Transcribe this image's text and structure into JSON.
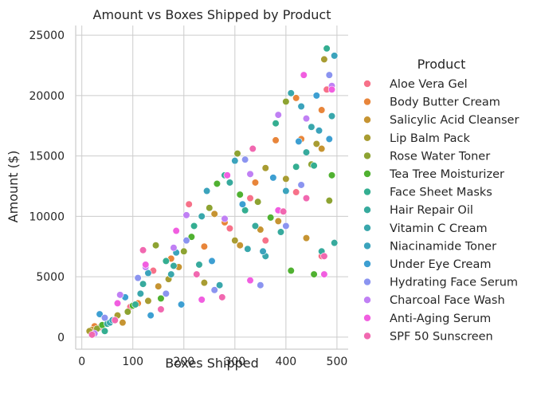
{
  "chart_data": {
    "type": "scatter",
    "title": "Amount vs Boxes Shipped by Product",
    "xlabel": "Boxes Shipped",
    "ylabel": "Amount ($)",
    "xlim": [
      -12,
      522
    ],
    "ylim": [
      -1000,
      25800
    ],
    "xticks": [
      0,
      100,
      200,
      300,
      400,
      500
    ],
    "yticks": [
      0,
      5000,
      10000,
      15000,
      20000,
      25000
    ],
    "xtick_labels": [
      "0",
      "100",
      "200",
      "300",
      "400",
      "500"
    ],
    "ytick_labels": [
      "0",
      "5000",
      "10000",
      "15000",
      "20000",
      "25000"
    ],
    "grid": true,
    "legend": {
      "title": "Product",
      "placement": "right"
    },
    "series": [
      {
        "name": "Aloe Vera Gel",
        "color": "#f77189",
        "points": [
          [
            35,
            800
          ],
          [
            95,
            2500
          ],
          [
            140,
            5500
          ],
          [
            210,
            11000
          ],
          [
            290,
            9000
          ],
          [
            330,
            11500
          ],
          [
            360,
            8000
          ],
          [
            420,
            12000
          ],
          [
            470,
            6700
          ],
          [
            480,
            20500
          ]
        ]
      },
      {
        "name": "Body Butter Cream",
        "color": "#e8853a",
        "points": [
          [
            25,
            900
          ],
          [
            110,
            2800
          ],
          [
            175,
            6500
          ],
          [
            240,
            7500
          ],
          [
            280,
            9500
          ],
          [
            340,
            12800
          ],
          [
            380,
            16300
          ],
          [
            430,
            16400
          ],
          [
            470,
            18800
          ],
          [
            420,
            19800
          ]
        ]
      },
      {
        "name": "Salicylic Acid Cleanser",
        "color": "#c69432",
        "points": [
          [
            20,
            600
          ],
          [
            80,
            1200
          ],
          [
            150,
            4200
          ],
          [
            190,
            5800
          ],
          [
            260,
            10200
          ],
          [
            310,
            7600
          ],
          [
            350,
            8900
          ],
          [
            385,
            9600
          ],
          [
            440,
            8200
          ],
          [
            470,
            15600
          ]
        ]
      },
      {
        "name": "Lip Balm Pack",
        "color": "#a89c32",
        "points": [
          [
            15,
            500
          ],
          [
            70,
            1800
          ],
          [
            130,
            3000
          ],
          [
            170,
            4800
          ],
          [
            240,
            4500
          ],
          [
            300,
            8000
          ],
          [
            360,
            14000
          ],
          [
            400,
            13100
          ],
          [
            460,
            16000
          ],
          [
            475,
            23000
          ]
        ]
      },
      {
        "name": "Rose Water Toner",
        "color": "#8da332",
        "points": [
          [
            30,
            700
          ],
          [
            90,
            2100
          ],
          [
            145,
            7600
          ],
          [
            200,
            7100
          ],
          [
            250,
            10700
          ],
          [
            305,
            15200
          ],
          [
            345,
            11200
          ],
          [
            400,
            19500
          ],
          [
            450,
            14300
          ],
          [
            485,
            11300
          ]
        ]
      },
      {
        "name": "Tea Tree Moisturizer",
        "color": "#50b131",
        "points": [
          [
            40,
            1000
          ],
          [
            100,
            2600
          ],
          [
            155,
            3200
          ],
          [
            215,
            8300
          ],
          [
            265,
            12700
          ],
          [
            310,
            11800
          ],
          [
            370,
            9900
          ],
          [
            410,
            5500
          ],
          [
            455,
            5200
          ],
          [
            490,
            13400
          ]
        ]
      },
      {
        "name": "Face Sheet Masks",
        "color": "#34ae91",
        "points": [
          [
            45,
            500
          ],
          [
            105,
            2700
          ],
          [
            165,
            6300
          ],
          [
            220,
            9200
          ],
          [
            280,
            13400
          ],
          [
            320,
            10500
          ],
          [
            380,
            17700
          ],
          [
            420,
            14100
          ],
          [
            455,
            14200
          ],
          [
            480,
            23900
          ]
        ]
      },
      {
        "name": "Hair Repair Oil",
        "color": "#37aa9d",
        "points": [
          [
            50,
            1100
          ],
          [
            120,
            4400
          ],
          [
            180,
            5900
          ],
          [
            230,
            6000
          ],
          [
            290,
            12800
          ],
          [
            340,
            9200
          ],
          [
            390,
            8700
          ],
          [
            440,
            15300
          ],
          [
            470,
            7100
          ],
          [
            495,
            7800
          ]
        ]
      },
      {
        "name": "Vitamin C Cream",
        "color": "#39a7ac",
        "points": [
          [
            55,
            1200
          ],
          [
            115,
            3600
          ],
          [
            175,
            5200
          ],
          [
            235,
            10000
          ],
          [
            270,
            4300
          ],
          [
            325,
            7300
          ],
          [
            360,
            6700
          ],
          [
            410,
            20200
          ],
          [
            450,
            17400
          ],
          [
            490,
            18300
          ]
        ]
      },
      {
        "name": "Niacinamide Toner",
        "color": "#3ba3bc",
        "points": [
          [
            60,
            1400
          ],
          [
            130,
            5300
          ],
          [
            185,
            7000
          ],
          [
            245,
            12100
          ],
          [
            300,
            14600
          ],
          [
            355,
            7100
          ],
          [
            400,
            12100
          ],
          [
            430,
            19100
          ],
          [
            465,
            17100
          ],
          [
            495,
            23300
          ]
        ]
      },
      {
        "name": "Under Eye Cream",
        "color": "#3d9fd2",
        "points": [
          [
            35,
            1900
          ],
          [
            85,
            3300
          ],
          [
            135,
            1800
          ],
          [
            195,
            2700
          ],
          [
            255,
            6300
          ],
          [
            315,
            11000
          ],
          [
            375,
            13200
          ],
          [
            425,
            16200
          ],
          [
            460,
            20000
          ],
          [
            485,
            16400
          ]
        ]
      },
      {
        "name": "Hydrating Face Serum",
        "color": "#8b94f0",
        "points": [
          [
            45,
            1600
          ],
          [
            110,
            4900
          ],
          [
            165,
            3600
          ],
          [
            205,
            8000
          ],
          [
            260,
            3900
          ],
          [
            320,
            14700
          ],
          [
            350,
            4300
          ],
          [
            400,
            9200
          ],
          [
            430,
            12600
          ],
          [
            485,
            21700
          ]
        ]
      },
      {
        "name": "Charcoal Face Wash",
        "color": "#c080f4",
        "points": [
          [
            25,
            300
          ],
          [
            75,
            3500
          ],
          [
            125,
            5800
          ],
          [
            180,
            7400
          ],
          [
            205,
            10100
          ],
          [
            280,
            9800
          ],
          [
            330,
            13500
          ],
          [
            385,
            18400
          ],
          [
            440,
            18100
          ],
          [
            490,
            20800
          ]
        ]
      },
      {
        "name": "Anti-Aging Serum",
        "color": "#f15ee0",
        "points": [
          [
            70,
            2800
          ],
          [
            125,
            6000
          ],
          [
            185,
            8800
          ],
          [
            235,
            3100
          ],
          [
            285,
            13400
          ],
          [
            330,
            4700
          ],
          [
            385,
            10500
          ],
          [
            435,
            21700
          ],
          [
            475,
            5200
          ],
          [
            490,
            20500
          ]
        ]
      },
      {
        "name": "SPF 50 Sunscreen",
        "color": "#f168b0",
        "points": [
          [
            20,
            200
          ],
          [
            65,
            1400
          ],
          [
            120,
            7200
          ],
          [
            155,
            2300
          ],
          [
            225,
            5200
          ],
          [
            275,
            3300
          ],
          [
            335,
            15600
          ],
          [
            395,
            10400
          ],
          [
            440,
            11500
          ],
          [
            475,
            6700
          ]
        ]
      }
    ]
  }
}
